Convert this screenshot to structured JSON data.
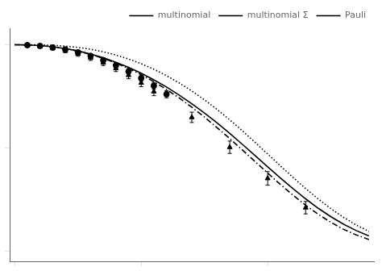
{
  "chart_data": {
    "type": "line",
    "x": [
      0.0,
      0.05,
      0.1,
      0.15,
      0.2,
      0.25,
      0.3,
      0.35,
      0.4,
      0.45,
      0.5,
      0.55,
      0.6,
      0.65,
      0.7,
      0.75,
      0.8,
      0.85,
      0.9,
      0.95,
      1.0,
      1.05,
      1.1,
      1.15,
      1.2,
      1.25,
      1.3,
      1.35,
      1.4
    ],
    "series": [
      {
        "name": "multinomial",
        "color": "#000000",
        "line_style": "dashdot",
        "values": [
          1.0,
          0.999,
          0.996,
          0.99,
          0.981,
          0.969,
          0.953,
          0.934,
          0.911,
          0.885,
          0.855,
          0.821,
          0.783,
          0.742,
          0.697,
          0.649,
          0.598,
          0.545,
          0.49,
          0.434,
          0.378,
          0.323,
          0.271,
          0.222,
          0.178,
          0.139,
          0.105,
          0.078,
          0.056
        ]
      },
      {
        "name": "multinomial Σ",
        "color": "#000000",
        "line_style": "dotted",
        "values": [
          1.0,
          1.0,
          0.999,
          0.997,
          0.993,
          0.987,
          0.978,
          0.966,
          0.95,
          0.931,
          0.908,
          0.881,
          0.85,
          0.815,
          0.776,
          0.733,
          0.686,
          0.636,
          0.583,
          0.527,
          0.47,
          0.413,
          0.357,
          0.303,
          0.252,
          0.205,
          0.163,
          0.126,
          0.095
        ]
      },
      {
        "name": "Pauli",
        "color": "#000000",
        "line_style": "solid",
        "values": [
          1.0,
          0.999,
          0.996,
          0.99,
          0.981,
          0.97,
          0.955,
          0.937,
          0.915,
          0.89,
          0.862,
          0.83,
          0.795,
          0.756,
          0.714,
          0.669,
          0.621,
          0.57,
          0.517,
          0.463,
          0.408,
          0.354,
          0.302,
          0.253,
          0.207,
          0.166,
          0.13,
          0.099,
          0.073
        ]
      },
      {
        "type": "scatter",
        "marker": "circle",
        "color": "#000000",
        "x": [
          0.05,
          0.1,
          0.15,
          0.2,
          0.25,
          0.3,
          0.35,
          0.4,
          0.45,
          0.5,
          0.55,
          0.6
        ],
        "values": [
          0.998,
          0.994,
          0.987,
          0.977,
          0.963,
          0.946,
          0.925,
          0.9,
          0.871,
          0.838,
          0.801,
          0.76
        ],
        "errors": [
          0.008,
          0.008,
          0.009,
          0.01,
          0.01,
          0.011,
          0.012,
          0.013,
          0.014,
          0.015,
          0.016,
          0.017
        ]
      },
      {
        "type": "scatter",
        "marker": "triangle",
        "color": "#000000",
        "x": [
          0.05,
          0.1,
          0.15,
          0.2,
          0.25,
          0.3,
          0.35,
          0.4,
          0.45,
          0.5,
          0.55,
          0.7,
          0.85,
          1.0,
          1.15
        ],
        "values": [
          0.998,
          0.993,
          0.984,
          0.972,
          0.956,
          0.937,
          0.913,
          0.885,
          0.852,
          0.815,
          0.773,
          0.648,
          0.503,
          0.352,
          0.21
        ],
        "errors": [
          0.008,
          0.009,
          0.01,
          0.011,
          0.012,
          0.013,
          0.014,
          0.015,
          0.017,
          0.018,
          0.02,
          0.025,
          0.03,
          0.033,
          0.03
        ]
      }
    ],
    "xlim": [
      -0.02,
      1.42
    ],
    "ylim": [
      -0.05,
      1.08
    ],
    "xticks": [
      0,
      0.5,
      1
    ],
    "yticks": [
      0,
      0.5,
      1
    ],
    "grid": false,
    "legend": "upper right",
    "tick_labels": false
  }
}
